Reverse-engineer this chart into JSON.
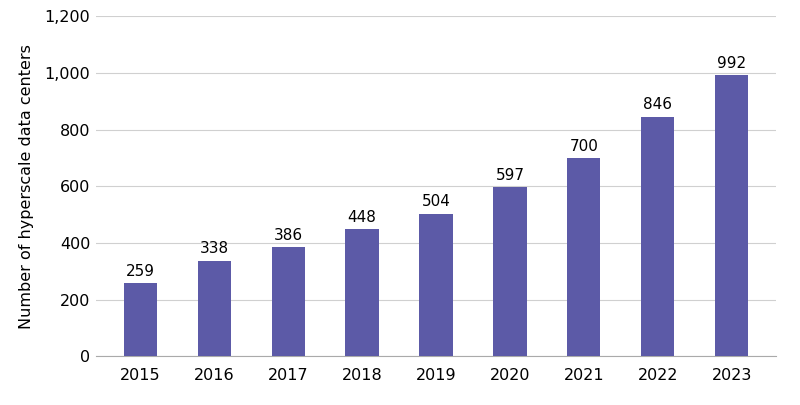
{
  "years": [
    "2015",
    "2016",
    "2017",
    "2018",
    "2019",
    "2020",
    "2021",
    "2022",
    "2023"
  ],
  "values": [
    259,
    338,
    386,
    448,
    504,
    597,
    700,
    846,
    992
  ],
  "bar_color": "#5c5aa7",
  "ylabel": "Number of hyperscale data centers",
  "ylim": [
    0,
    1200
  ],
  "yticks": [
    0,
    200,
    400,
    600,
    800,
    1000,
    1200
  ],
  "background_color": "#ffffff",
  "tick_fontsize": 11.5,
  "ylabel_fontsize": 11.5,
  "annotation_fontsize": 11,
  "grid_color": "#d0d0d0",
  "bar_width": 0.45
}
